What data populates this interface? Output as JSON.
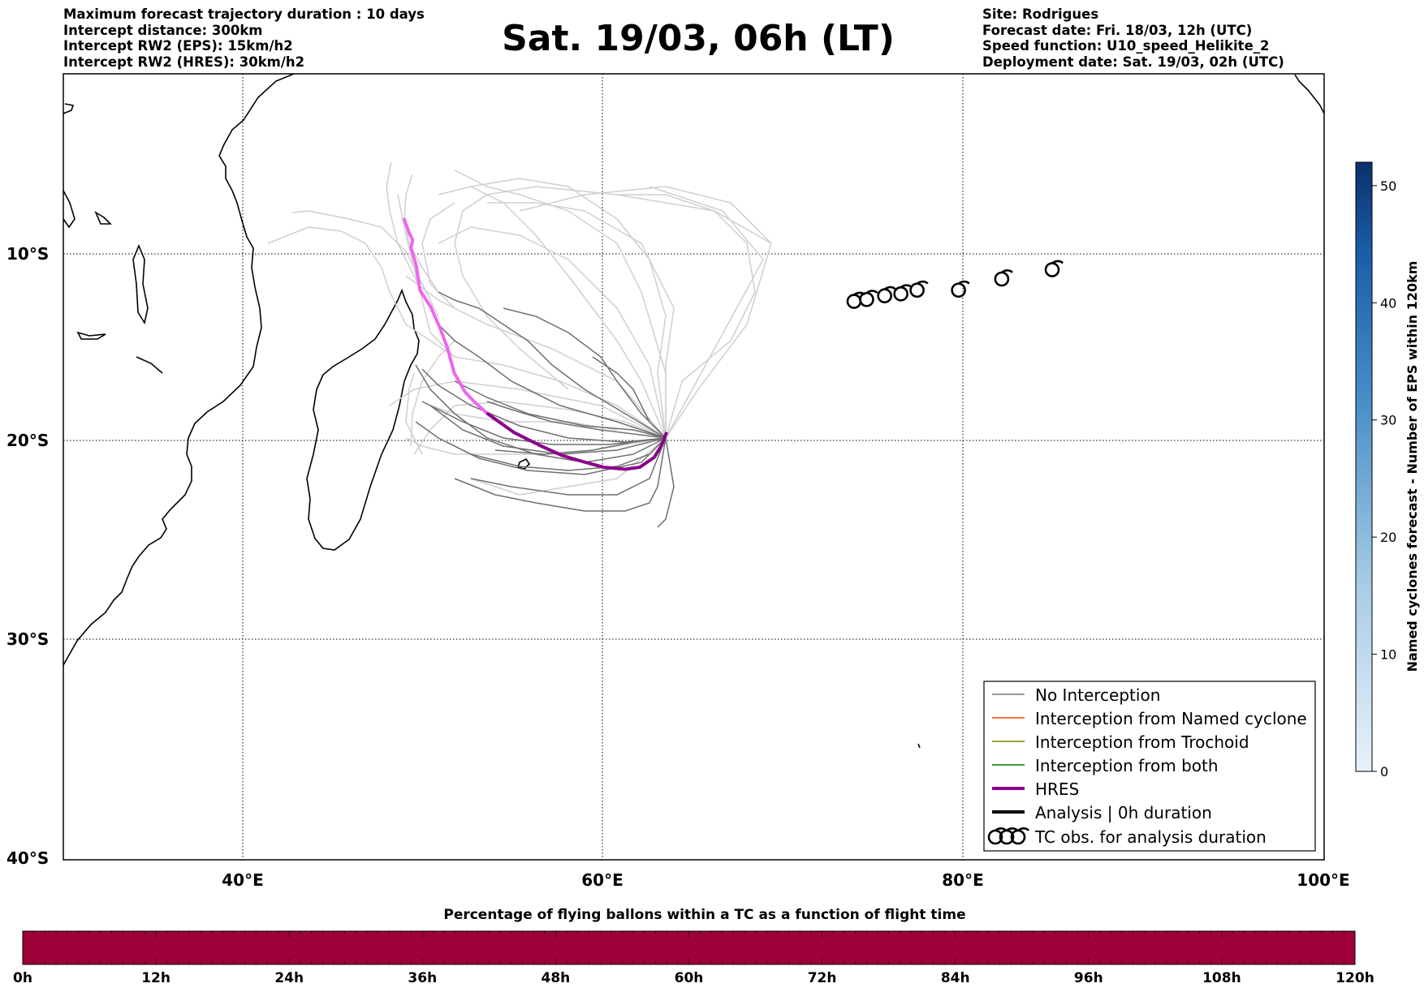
{
  "header_left": [
    "Maximum forecast trajectory duration : 10 days",
    "Intercept distance: 300km",
    "Intercept RW2 (EPS):  15km/h2",
    "Intercept RW2 (HRES): 30km/h2"
  ],
  "header_right": [
    "Site: Rodrigues",
    "Forecast date: Fri. 18/03, 12h (UTC)",
    "Speed function: U10_speed_Helikite_2",
    "Deployment date: Sat. 19/03, 02h (UTC)"
  ],
  "title": "Sat. 19/03, 06h (LT)",
  "map": {
    "lon_ticks": [
      "40°E",
      "60°E",
      "80°E",
      "100°E"
    ],
    "lat_ticks": [
      "10°S",
      "20°S",
      "30°S",
      "40°S"
    ],
    "lon_range": [
      30,
      100
    ],
    "lat_range": [
      -40,
      -0.5
    ],
    "grid": true
  },
  "legend": {
    "position": "lower-right",
    "items": [
      {
        "label": "No Interception",
        "color": "#777777"
      },
      {
        "label": "Interception from Named cyclone",
        "color": "#ff4500"
      },
      {
        "label": "Interception from Trochoid",
        "color": "#808000"
      },
      {
        "label": "Interception from both",
        "color": "#008000"
      },
      {
        "label": "HRES",
        "color": "#8b008b"
      },
      {
        "label": "Analysis | 0h duration",
        "color": "#000000"
      },
      {
        "label": "TC obs. for analysis duration",
        "color": "#000000",
        "symbol": "cyclone-icon"
      }
    ]
  },
  "colorbar_right": {
    "label": "Named cyclones forecast - Number of EPS within 120km",
    "ticks": [
      "0",
      "10",
      "20",
      "30",
      "40",
      "50"
    ],
    "max": 52,
    "color_low": "#e8f1fa",
    "color_high": "#0b2f6b"
  },
  "colorbar_bottom": {
    "title": "Percentage of flying ballons within a TC as a function of flight time",
    "ticks": [
      "0h",
      "12h",
      "24h",
      "36h",
      "48h",
      "60h",
      "72h",
      "84h",
      "96h",
      "108h",
      "120h"
    ],
    "fill_color": "#9e003a"
  },
  "chart_data": {
    "type": "line",
    "title": "Sat. 19/03, 06h (LT)",
    "xlim": [
      30,
      100
    ],
    "ylim": [
      -40,
      -0.5
    ],
    "series": [
      {
        "name": "HRES",
        "color": "#8b008b",
        "x": [
          63.5,
          63.2,
          62.8,
          62.0,
          61.2,
          60.0,
          58.8,
          57.7,
          56.5,
          55.0,
          53.5,
          52.8,
          52.3,
          51.7,
          51.3,
          50.9,
          50.4,
          49.8,
          49.6,
          49.3,
          49.4,
          49.2,
          48.9
        ],
        "y": [
          -19.8,
          -20.5,
          -21.1,
          -21.6,
          -21.7,
          -21.6,
          -21.3,
          -21.0,
          -20.5,
          -19.8,
          -18.8,
          -18.2,
          -17.7,
          -16.7,
          -15.3,
          -14.3,
          -13.2,
          -12.3,
          -11.0,
          -10.0,
          -9.6,
          -9.2,
          -8.4
        ]
      },
      {
        "name": "TC obs. for analysis duration",
        "x": [
          73.9,
          74.6,
          75.6,
          76.5,
          77.4,
          79.7,
          82.1,
          84.9
        ],
        "y": [
          -12.9,
          -12.8,
          -12.6,
          -12.5,
          -12.3,
          -12.3,
          -11.7,
          -11.2
        ]
      }
    ]
  }
}
